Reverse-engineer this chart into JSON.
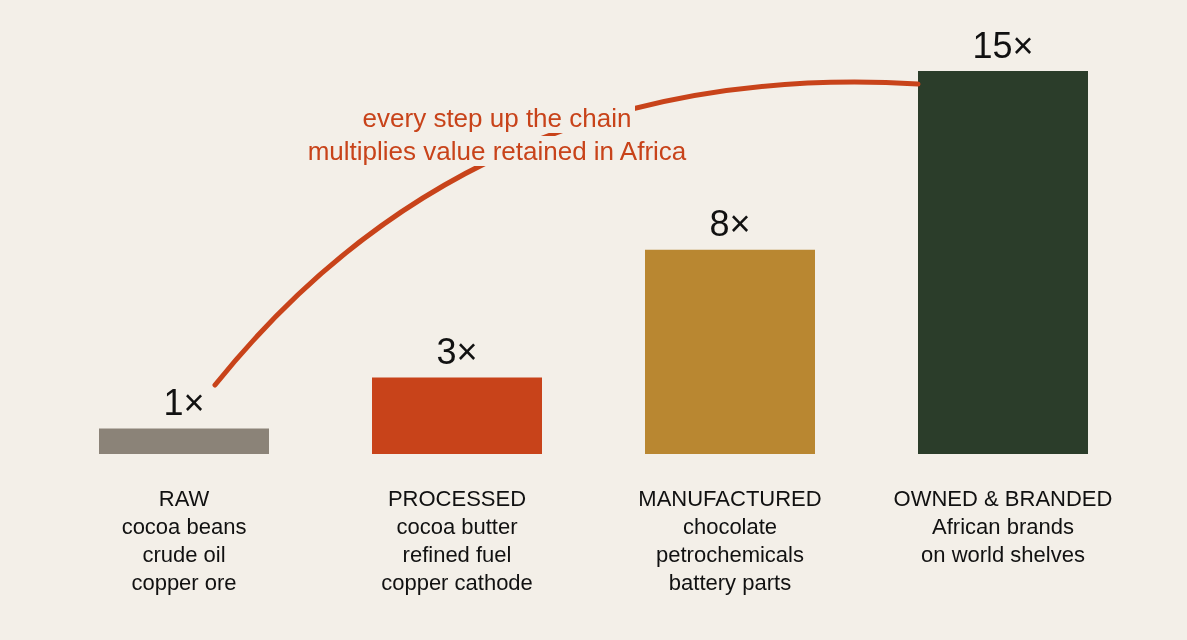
{
  "chart_data": {
    "type": "bar",
    "categories": [
      "RAW\ncocoa beans\ncrude oil\ncopper ore",
      "PROCESSED\ncocoa butter\nrefined fuel\ncopper cathode",
      "MANUFACTURED\nchocolate\npetrochemicals\nbattery parts",
      "OWNED & BRANDED\nAfrican brands\non world shelves"
    ],
    "values": [
      1,
      3,
      8,
      15
    ],
    "colors": [
      "#8b8378",
      "#c8431a",
      "#b98731",
      "#2b3d2a"
    ],
    "value_labels": [
      "1×",
      "3×",
      "8×",
      "15×"
    ],
    "annotations": [
      "every step up the chain\nmultiplies value retained in Africa"
    ],
    "grid": false
  }
}
